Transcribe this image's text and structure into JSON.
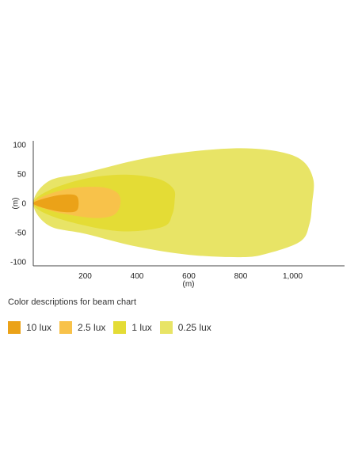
{
  "chart_data": {
    "type": "area",
    "xlabel": "(m)",
    "ylabel": "(m)",
    "xlim": [
      0,
      1200
    ],
    "ylim": [
      -100,
      100
    ],
    "x_ticks": [
      {
        "v": 200,
        "label": "200"
      },
      {
        "v": 400,
        "label": "400"
      },
      {
        "v": 600,
        "label": "600"
      },
      {
        "v": 800,
        "label": "800"
      },
      {
        "v": 1000,
        "label": "1,000"
      }
    ],
    "y_ticks": [
      {
        "v": 100,
        "label": "100"
      },
      {
        "v": 50,
        "label": "50"
      },
      {
        "v": 0,
        "label": "0"
      },
      {
        "v": -50,
        "label": "-50"
      },
      {
        "v": -100,
        "label": "-100"
      }
    ],
    "series": [
      {
        "name": "0.25 lux",
        "color": "#e8e466",
        "points": [
          [
            0,
            0
          ],
          [
            60,
            38
          ],
          [
            200,
            52
          ],
          [
            400,
            74
          ],
          [
            600,
            88
          ],
          [
            800,
            94
          ],
          [
            950,
            88
          ],
          [
            1040,
            72
          ],
          [
            1080,
            40
          ],
          [
            1075,
            0
          ],
          [
            1065,
            -35
          ],
          [
            1030,
            -65
          ],
          [
            900,
            -86
          ],
          [
            800,
            -92
          ],
          [
            600,
            -88
          ],
          [
            400,
            -74
          ],
          [
            200,
            -52
          ],
          [
            60,
            -38
          ],
          [
            0,
            0
          ]
        ]
      },
      {
        "name": "1 lux",
        "color": "#e4dc35",
        "points": [
          [
            0,
            0
          ],
          [
            60,
            22
          ],
          [
            200,
            42
          ],
          [
            350,
            49
          ],
          [
            480,
            42
          ],
          [
            540,
            25
          ],
          [
            545,
            5
          ],
          [
            535,
            -20
          ],
          [
            500,
            -40
          ],
          [
            350,
            -48
          ],
          [
            200,
            -38
          ],
          [
            60,
            -20
          ],
          [
            0,
            0
          ]
        ]
      },
      {
        "name": "2.5 lux",
        "color": "#f8c24a",
        "points": [
          [
            0,
            0
          ],
          [
            50,
            14
          ],
          [
            150,
            26
          ],
          [
            250,
            28
          ],
          [
            310,
            22
          ],
          [
            335,
            10
          ],
          [
            330,
            -10
          ],
          [
            300,
            -22
          ],
          [
            230,
            -25
          ],
          [
            120,
            -18
          ],
          [
            50,
            -10
          ],
          [
            0,
            0
          ]
        ]
      },
      {
        "name": "10 lux",
        "color": "#eba218",
        "points": [
          [
            0,
            0
          ],
          [
            40,
            8
          ],
          [
            100,
            14
          ],
          [
            150,
            15
          ],
          [
            170,
            11
          ],
          [
            175,
            0
          ],
          [
            170,
            -11
          ],
          [
            150,
            -15
          ],
          [
            100,
            -14
          ],
          [
            40,
            -8
          ],
          [
            0,
            0
          ]
        ]
      }
    ]
  },
  "legend": {
    "title": "Color descriptions for beam chart",
    "items": [
      {
        "label": "10 lux",
        "color": "#eba218"
      },
      {
        "label": "2.5 lux",
        "color": "#f8c24a"
      },
      {
        "label": "1 lux",
        "color": "#e4dc35"
      },
      {
        "label": "0.25 lux",
        "color": "#e8e466"
      }
    ]
  }
}
